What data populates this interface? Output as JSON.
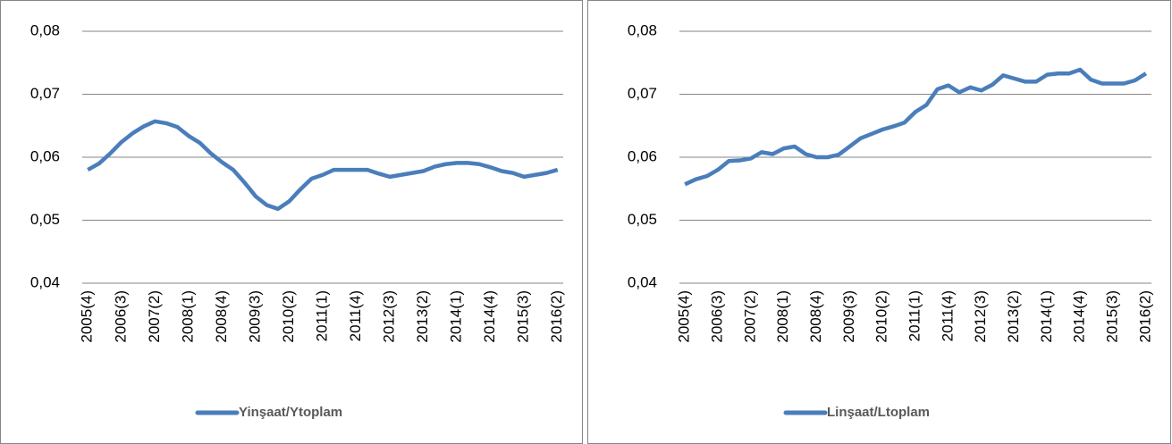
{
  "chart_data": [
    {
      "type": "line",
      "categories": [
        "2005(4)",
        null,
        null,
        "2006(3)",
        null,
        null,
        "2007(2)",
        null,
        null,
        "2008(1)",
        null,
        null,
        "2008(4)",
        null,
        null,
        "2009(3)",
        null,
        null,
        "2010(2)",
        null,
        null,
        "2011(1)",
        null,
        null,
        "2011(4)",
        null,
        null,
        "2012(3)",
        null,
        null,
        "2013(2)",
        null,
        null,
        "2014(1)",
        null,
        null,
        "2014(4)",
        null,
        null,
        "2015(3)",
        null,
        null,
        "2016(2)"
      ],
      "series": [
        {
          "name": "Yinşaat/Ytoplam",
          "color": "#4a7ebb",
          "values": [
            0.058,
            0.059,
            0.0606,
            0.0624,
            0.0638,
            0.0649,
            0.0657,
            0.0654,
            0.0648,
            0.0634,
            0.0623,
            0.0606,
            0.0592,
            0.058,
            0.056,
            0.0538,
            0.0524,
            0.0518,
            0.053,
            0.0549,
            0.0566,
            0.0572,
            0.058,
            0.058,
            0.058,
            0.058,
            0.0574,
            0.0569,
            0.0572,
            0.0575,
            0.0578,
            0.0585,
            0.0589,
            0.0591,
            0.0591,
            0.0589,
            0.0584,
            0.0578,
            0.0575,
            0.0569,
            0.0572,
            0.0575,
            0.058
          ]
        }
      ],
      "ylim": [
        0.04,
        0.08
      ],
      "yticks": [
        {
          "value": 0.04,
          "label": "0,04"
        },
        {
          "value": 0.05,
          "label": "0,05"
        },
        {
          "value": 0.06,
          "label": "0,06"
        },
        {
          "value": 0.07,
          "label": "0,07"
        },
        {
          "value": 0.08,
          "label": "0,08"
        }
      ],
      "grid": true,
      "legend": "bottom"
    },
    {
      "type": "line",
      "categories": [
        "2005(4)",
        null,
        null,
        "2006(3)",
        null,
        null,
        "2007(2)",
        null,
        null,
        "2008(1)",
        null,
        null,
        "2008(4)",
        null,
        null,
        "2009(3)",
        null,
        null,
        "2010(2)",
        null,
        null,
        "2011(1)",
        null,
        null,
        "2011(4)",
        null,
        null,
        "2012(3)",
        null,
        null,
        "2013(2)",
        null,
        null,
        "2014(1)",
        null,
        null,
        "2014(4)",
        null,
        null,
        "2015(3)",
        null,
        null,
        "2016(2)"
      ],
      "series": [
        {
          "name": "Linşaat/Ltoplam",
          "color": "#4a7ebb",
          "values": [
            0.0557,
            0.0565,
            0.057,
            0.058,
            0.0594,
            0.0595,
            0.0598,
            0.0608,
            0.0605,
            0.0614,
            0.0617,
            0.0605,
            0.06,
            0.06,
            0.0604,
            0.0617,
            0.063,
            0.0637,
            0.0644,
            0.0649,
            0.0655,
            0.0672,
            0.0683,
            0.0708,
            0.0714,
            0.0703,
            0.0711,
            0.0706,
            0.0715,
            0.073,
            0.0725,
            0.072,
            0.072,
            0.0731,
            0.0733,
            0.0733,
            0.0739,
            0.0723,
            0.0717,
            0.0717,
            0.0717,
            0.0722,
            0.0733
          ]
        }
      ],
      "ylim": [
        0.04,
        0.08
      ],
      "yticks": [
        {
          "value": 0.04,
          "label": "0,04"
        },
        {
          "value": 0.05,
          "label": "0,05"
        },
        {
          "value": 0.06,
          "label": "0,06"
        },
        {
          "value": 0.07,
          "label": "0,07"
        },
        {
          "value": 0.08,
          "label": "0,08"
        }
      ],
      "grid": true,
      "legend": "bottom"
    }
  ]
}
